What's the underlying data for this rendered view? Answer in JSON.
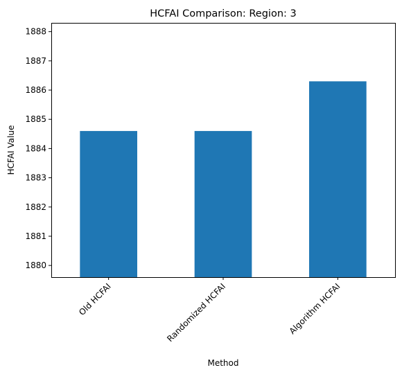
{
  "chart_data": {
    "type": "bar",
    "title": "HCFAI Comparison: Region: 3",
    "xlabel": "Method",
    "ylabel": "HCFAI Value",
    "categories": [
      "Old HCFAI",
      "Randomized HCFAI",
      "Algorithm HCFAI"
    ],
    "values": [
      1884.6,
      1884.6,
      1886.3
    ],
    "ylim": [
      1879.6,
      1888.3
    ],
    "yticks": [
      1880,
      1881,
      1882,
      1883,
      1884,
      1885,
      1886,
      1887,
      1888
    ],
    "bar_color": "#1f77b4",
    "grid": false,
    "legend": "none"
  }
}
